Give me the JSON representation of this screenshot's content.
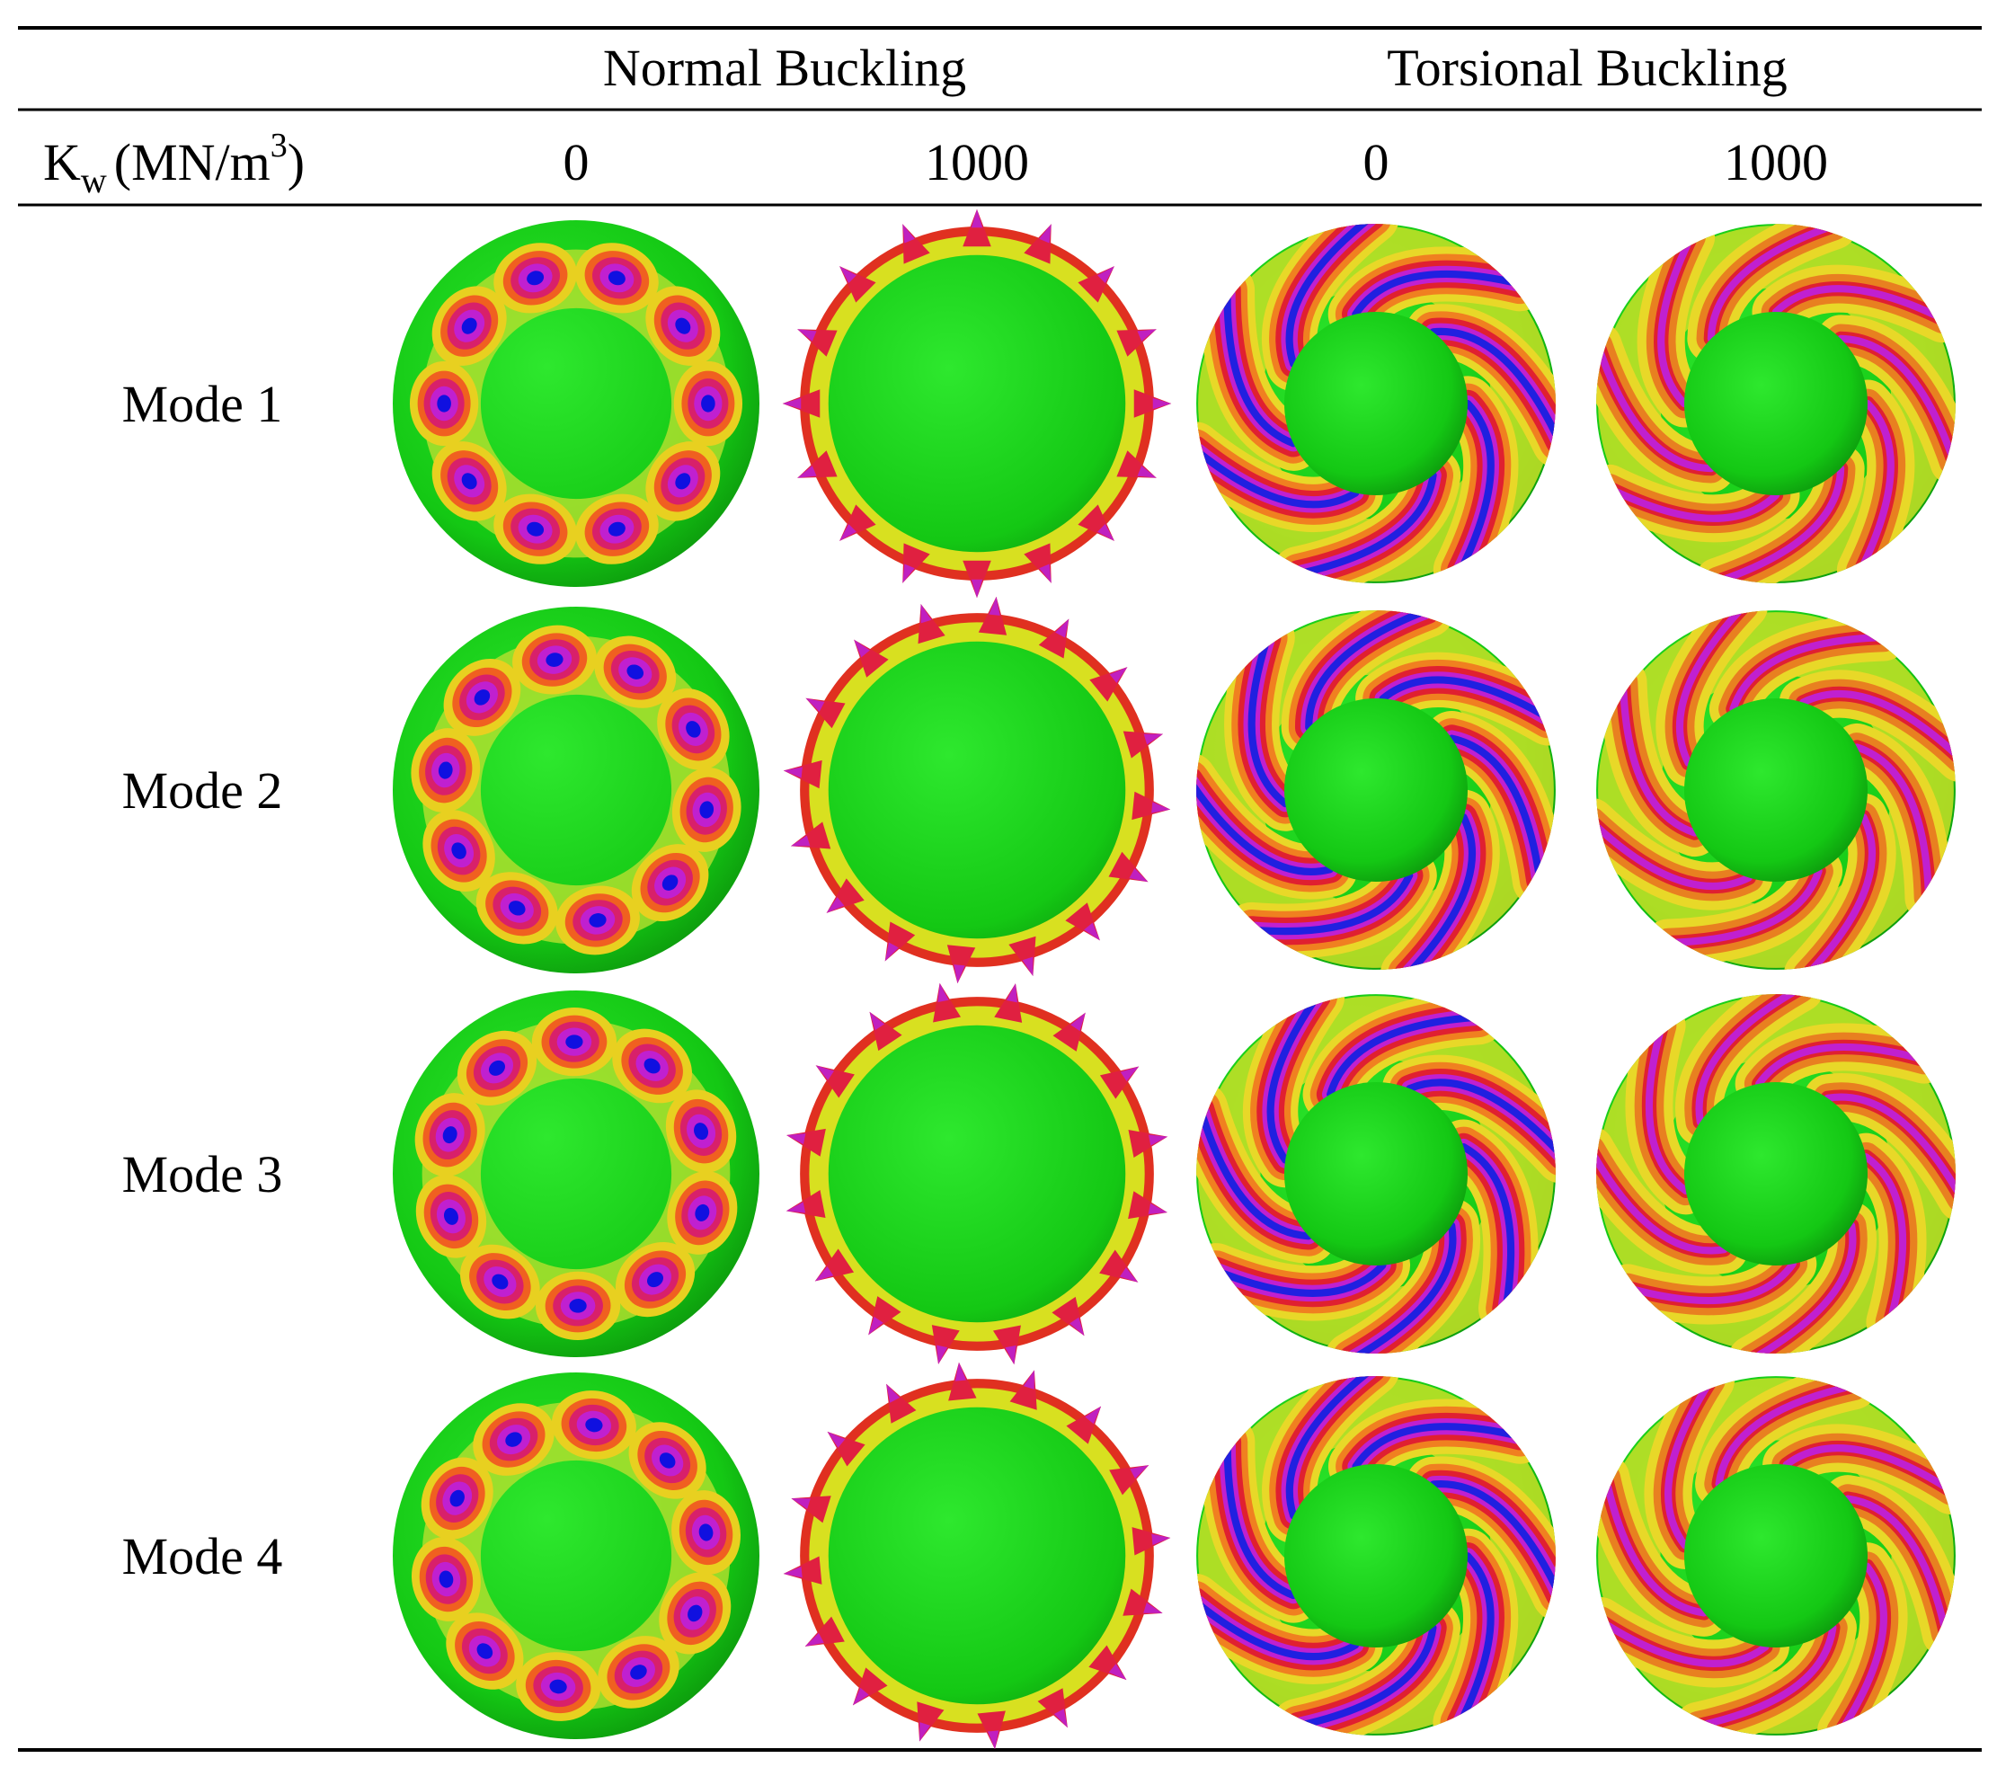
{
  "table": {
    "column_groups": [
      "Normal Buckling",
      "Torsional Buckling"
    ],
    "row_header": {
      "symbol": "K",
      "subscript": "w",
      "unit": "(MN/m",
      "superscript": "3",
      "unit_end": ")"
    },
    "columns": [
      0,
      1000,
      0,
      1000
    ],
    "rows": [
      "Mode 1",
      "Mode 2",
      "Mode 3",
      "Mode 4"
    ]
  }
}
